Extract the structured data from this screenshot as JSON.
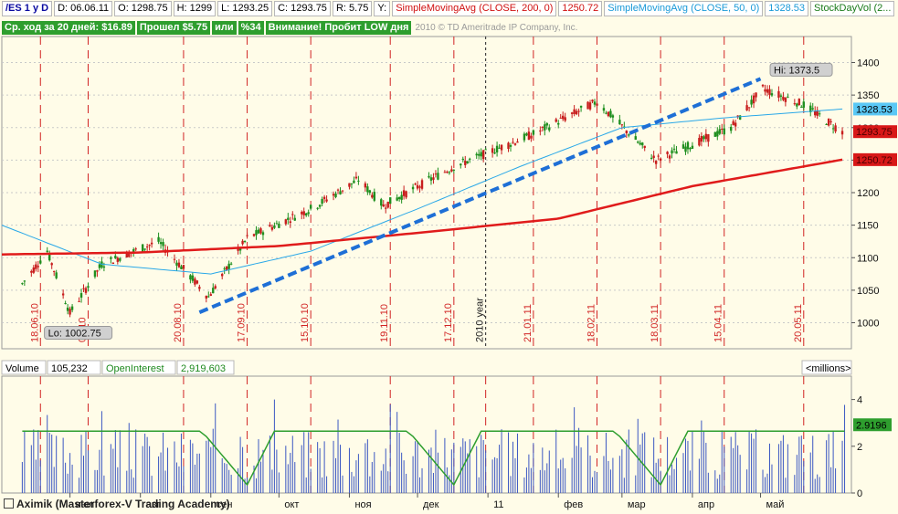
{
  "header": {
    "symbol": "/ES 1 y D",
    "date": "D: 06.06.11",
    "open": "O: 1298.75",
    "high": "H: 1299",
    "low": "L: 1293.25",
    "close": "C: 1293.75",
    "range": "R: 5.75",
    "y_label": "Y:",
    "sma200_label": "SimpleMovingAvg (CLOSE, 200, 0)",
    "sma200_value": "1250.72",
    "sma50_label": "SimpleMovingAvg (CLOSE, 50, 0)",
    "sma50_value": "1328.53",
    "stockdayvol": "StockDayVol (2..."
  },
  "stats_bar": {
    "avg_move": "Ср. ход за 20 дней: $16.89",
    "passed": "Прошел $5.75",
    "or": "или",
    "percent": "%34",
    "warning": "Внимание! Пробит LOW дня"
  },
  "watermark": "2010 © TD Ameritrade IP Company, Inc.",
  "colors": {
    "background": "#fffce8",
    "up": "#1f8f1f",
    "down": "#c81e1e",
    "sma200": "#e01b1b",
    "sma50": "#2aa8e8",
    "trend": "#1e6fd6",
    "marker": "#d12424",
    "volume": "#3b57c2",
    "oi": "#2e9e2e"
  },
  "chart_data": [
    {
      "type": "line",
      "title": "/ES 1 y D",
      "ylim": [
        960,
        1440
      ],
      "y_ticks": [
        1000,
        1050,
        1100,
        1150,
        1200,
        1250,
        1300,
        1350,
        1400
      ],
      "x_date_markers": [
        "18.06.10",
        "07.10",
        "20.08.10",
        "17.09.10",
        "15.10.10",
        "19.11.10",
        "17.12.10",
        "2010 year",
        "21.01.11",
        "18.02.11",
        "18.03.11",
        "15.04.11",
        "20.05.11"
      ],
      "series": [
        {
          "name": "Price",
          "x": [
            "2010-06-10",
            "2010-06-21",
            "2010-07-01",
            "2010-07-15",
            "2010-08-09",
            "2010-08-31",
            "2010-09-17",
            "2010-10-15",
            "2010-11-05",
            "2010-11-16",
            "2010-12-17",
            "2011-01-21",
            "2011-02-18",
            "2011-03-16",
            "2011-04-18",
            "2011-05-02",
            "2011-05-20",
            "2011-06-06"
          ],
          "values": [
            1060,
            1110,
            1015,
            1090,
            1125,
            1040,
            1130,
            1175,
            1220,
            1180,
            1240,
            1290,
            1340,
            1250,
            1300,
            1360,
            1335,
            1293.75
          ]
        },
        {
          "name": "SimpleMovingAvg (CLOSE, 200, 0)",
          "x": [
            "2010-06-01",
            "2010-08-01",
            "2010-10-01",
            "2010-12-01",
            "2011-02-01",
            "2011-04-01",
            "2011-06-06"
          ],
          "values": [
            1105,
            1108,
            1118,
            1138,
            1160,
            1210,
            1250.72
          ]
        },
        {
          "name": "SimpleMovingAvg (CLOSE, 50, 0)",
          "x": [
            "2010-06-01",
            "2010-07-15",
            "2010-09-01",
            "2010-10-15",
            "2010-12-01",
            "2011-01-15",
            "2011-03-01",
            "2011-04-15",
            "2011-06-06"
          ],
          "values": [
            1150,
            1090,
            1075,
            1110,
            1175,
            1240,
            1300,
            1315,
            1328.53
          ]
        }
      ],
      "annotations": [
        {
          "label": "Hi: 1373.5",
          "x": "2011-05-02",
          "y": 1373.5
        },
        {
          "label": "Lo: 1002.75",
          "x": "2010-07-01",
          "y": 1002.75
        }
      ],
      "price_tags": [
        "1328.53",
        "1293.75",
        "1250.72"
      ]
    },
    {
      "type": "bar",
      "title": "Volume",
      "volume_value": "105,232",
      "oi_label": "OpenInterest",
      "oi_value": "2,919,603",
      "units": "<millions>",
      "ylim": [
        0,
        5
      ],
      "y_ticks": [
        0,
        2,
        4
      ],
      "months": [
        "июл",
        "авг",
        "сен",
        "окт",
        "ноя",
        "дек",
        "11",
        "фев",
        "мар",
        "апр",
        "май"
      ],
      "oi_tag": "2.9196"
    }
  ],
  "footer": "Aximik (Masterforex-V Trading Academy)"
}
